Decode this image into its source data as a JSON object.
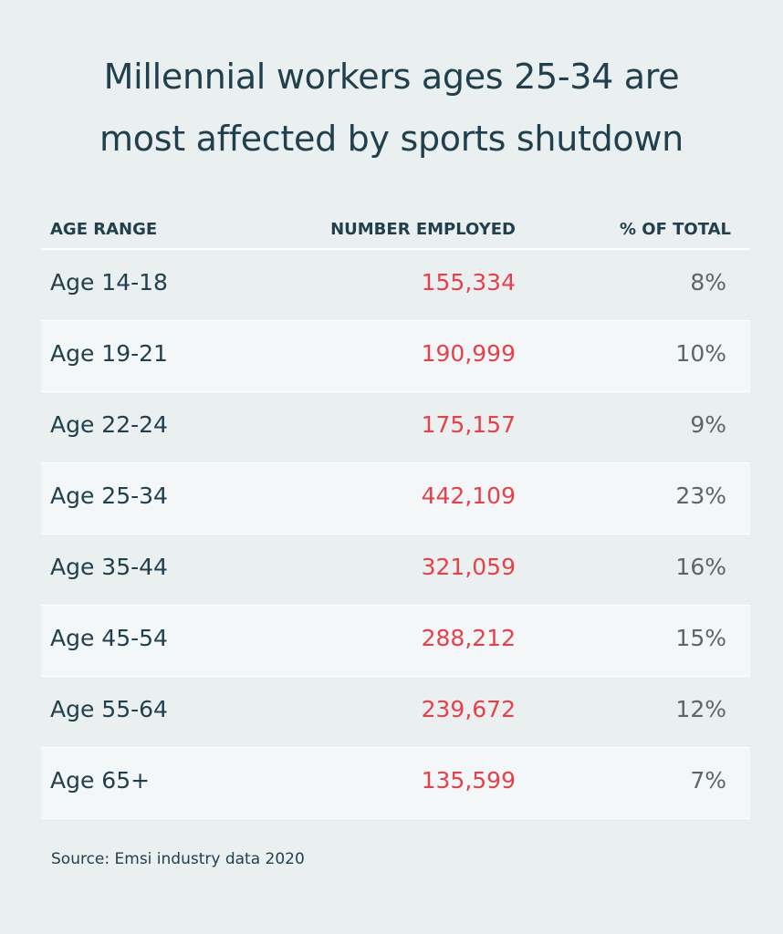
{
  "title": {
    "line1": "Millennial workers ages 25-34 are",
    "line2": "most affected by sports shutdown"
  },
  "headers": {
    "age": "AGE RANGE",
    "num": "NUMBER EMPLOYED",
    "pct": "% OF TOTAL"
  },
  "source": "Source: Emsi industry data 2020",
  "colors": {
    "title": "#21404e",
    "number": "#e8404b",
    "percent": "#5c6567",
    "background": "#eaf0ef",
    "row_shade": "#f4f7f7"
  },
  "chart_data": {
    "type": "table",
    "title": "Millennial workers ages 25-34 are most affected by sports shutdown",
    "columns": [
      "AGE RANGE",
      "NUMBER EMPLOYED",
      "% OF TOTAL"
    ],
    "rows": [
      {
        "age": "Age 14-18",
        "num": "155,334",
        "pct": "8%"
      },
      {
        "age": "Age 19-21",
        "num": "190,999",
        "pct": "10%"
      },
      {
        "age": "Age 22-24",
        "num": "175,157",
        "pct": "9%"
      },
      {
        "age": "Age 25-34",
        "num": "442,109",
        "pct": "23%"
      },
      {
        "age": "Age 35-44",
        "num": "321,059",
        "pct": "16%"
      },
      {
        "age": "Age 45-54",
        "num": "288,212",
        "pct": "15%"
      },
      {
        "age": "Age 55-64",
        "num": "239,672",
        "pct": "12%"
      },
      {
        "age": "Age 65+",
        "num": "135,599",
        "pct": "7%"
      }
    ]
  }
}
